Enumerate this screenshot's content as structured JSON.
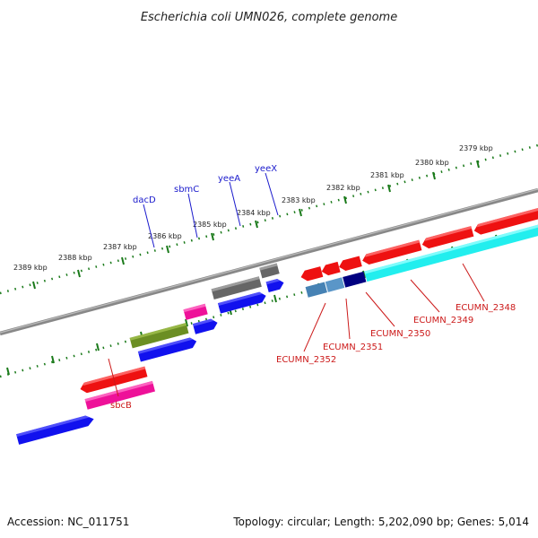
{
  "title": "Escherichia coli UMN026, complete genome",
  "footer": {
    "accession": "Accession: NC_011751",
    "summary": "Topology: circular; Length: 5,202,090 bp; Genes: 5,014"
  },
  "colors": {
    "red": "#ee1111",
    "blue": "#1111ee",
    "green": "#6b8e23",
    "pink": "#ee1199",
    "gray": "#666666",
    "cyan": "#22eeee",
    "steelblue": "#4682b4",
    "navy": "#000080",
    "tick": "#1a7a1a",
    "backbone": "#888888",
    "blue_label": "#1a1acc",
    "red_label": "#cc1a1a"
  },
  "ticks": {
    "outer": [
      "2389 kbp",
      "2388 kbp",
      "2387 kbp",
      "2386 kbp",
      "2385 kbp",
      "2384 kbp",
      "2383 kbp",
      "2382 kbp",
      "2381 kbp",
      "2380 kbp",
      "2379 kbp"
    ]
  },
  "gene_labels": {
    "top": [
      "dacD",
      "sbmC",
      "yeeA",
      "yeeX"
    ],
    "bottom": [
      "sbcB",
      "ECUMN_2352",
      "ECUMN_2351",
      "ECUMN_2350",
      "ECUMN_2349",
      "ECUMN_2348"
    ]
  }
}
